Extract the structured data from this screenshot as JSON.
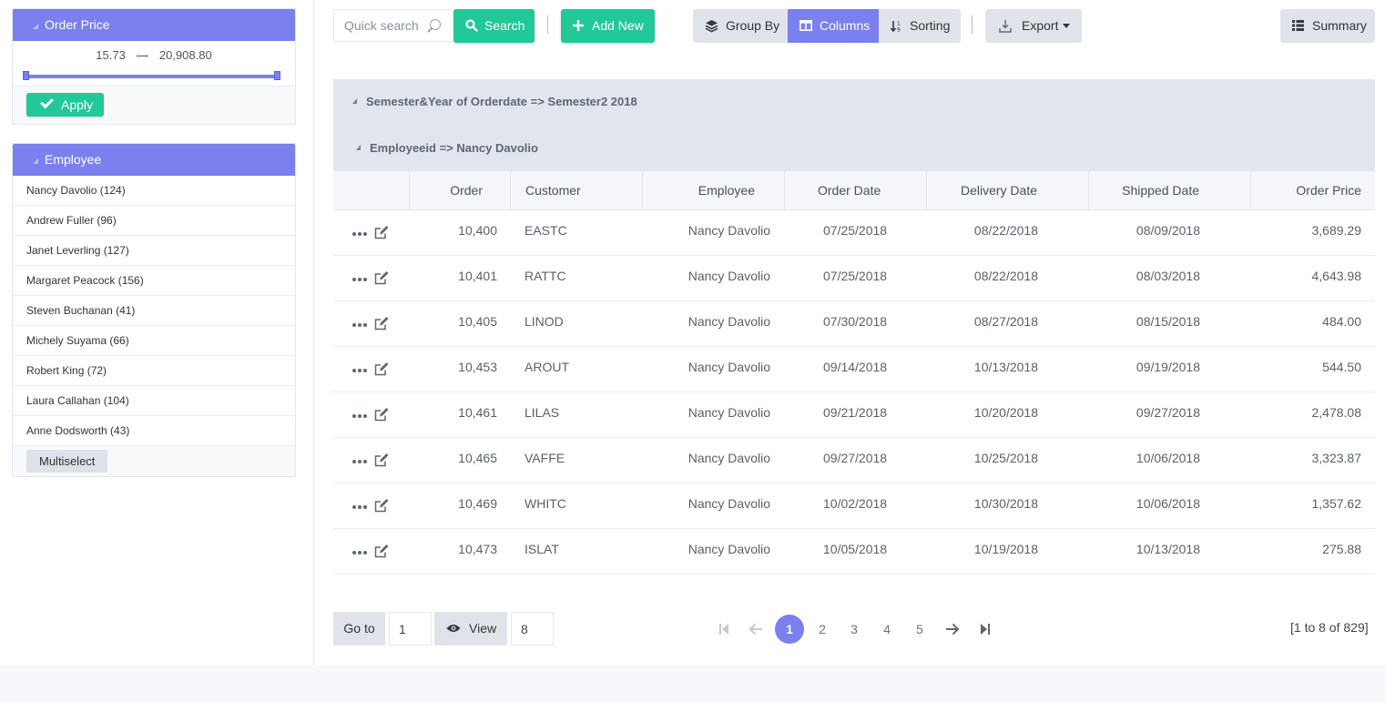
{
  "filters": {
    "order_price": {
      "title": "Order Price",
      "min": "15.73",
      "dash": "—",
      "max": "20,908.80",
      "apply_label": "Apply"
    },
    "employee": {
      "title": "Employee",
      "items": [
        {
          "label": "Nancy Davolio (124)"
        },
        {
          "label": "Andrew Fuller (96)"
        },
        {
          "label": "Janet Leverling (127)"
        },
        {
          "label": "Margaret Peacock (156)"
        },
        {
          "label": "Steven Buchanan (41)"
        },
        {
          "label": "Michely Suyama (66)"
        },
        {
          "label": "Robert King (72)"
        },
        {
          "label": "Laura Callahan (104)"
        },
        {
          "label": "Anne Dodsworth (43)"
        }
      ],
      "multiselect_label": "Multiselect"
    }
  },
  "toolbar": {
    "search_placeholder": "Quick search",
    "search_label": "Search",
    "add_new_label": "Add New",
    "group_by_label": "Group By",
    "columns_label": "Columns",
    "sorting_label": "Sorting",
    "export_label": "Export",
    "summary_label": "Summary"
  },
  "grid": {
    "group_1": "Semester&Year of Orderdate => Semester2 2018",
    "group_2": "Employeeid => Nancy Davolio",
    "columns": {
      "order": "Order",
      "customer": "Customer",
      "employee": "Employee",
      "order_date": "Order Date",
      "delivery_date": "Delivery Date",
      "shipped_date": "Shipped Date",
      "order_price": "Order Price"
    },
    "rows": [
      {
        "order": "10,400",
        "customer": "EASTC",
        "employee": "Nancy Davolio",
        "order_date": "07/25/2018",
        "delivery_date": "08/22/2018",
        "shipped_date": "08/09/2018",
        "price": "3,689.29"
      },
      {
        "order": "10,401",
        "customer": "RATTC",
        "employee": "Nancy Davolio",
        "order_date": "07/25/2018",
        "delivery_date": "08/22/2018",
        "shipped_date": "08/03/2018",
        "price": "4,643.98"
      },
      {
        "order": "10,405",
        "customer": "LINOD",
        "employee": "Nancy Davolio",
        "order_date": "07/30/2018",
        "delivery_date": "08/27/2018",
        "shipped_date": "08/15/2018",
        "price": "484.00"
      },
      {
        "order": "10,453",
        "customer": "AROUT",
        "employee": "Nancy Davolio",
        "order_date": "09/14/2018",
        "delivery_date": "10/13/2018",
        "shipped_date": "09/19/2018",
        "price": "544.50"
      },
      {
        "order": "10,461",
        "customer": "LILAS",
        "employee": "Nancy Davolio",
        "order_date": "09/21/2018",
        "delivery_date": "10/20/2018",
        "shipped_date": "09/27/2018",
        "price": "2,478.08"
      },
      {
        "order": "10,465",
        "customer": "VAFFE",
        "employee": "Nancy Davolio",
        "order_date": "09/27/2018",
        "delivery_date": "10/25/2018",
        "shipped_date": "10/06/2018",
        "price": "3,323.87"
      },
      {
        "order": "10,469",
        "customer": "WHITC",
        "employee": "Nancy Davolio",
        "order_date": "10/02/2018",
        "delivery_date": "10/30/2018",
        "shipped_date": "10/06/2018",
        "price": "1,357.62"
      },
      {
        "order": "10,473",
        "customer": "ISLAT",
        "employee": "Nancy Davolio",
        "order_date": "10/05/2018",
        "delivery_date": "10/19/2018",
        "shipped_date": "10/13/2018",
        "price": "275.88"
      }
    ]
  },
  "pager": {
    "goto_label": "Go to",
    "goto_value": "1",
    "view_label": "View",
    "view_value": "8",
    "pages": [
      "1",
      "2",
      "3",
      "4",
      "5"
    ],
    "status": "[1 to 8 of 829]"
  },
  "colors": {
    "accent": "#7a80ee",
    "success": "#20c997",
    "group_band": "#e1e6ee"
  }
}
